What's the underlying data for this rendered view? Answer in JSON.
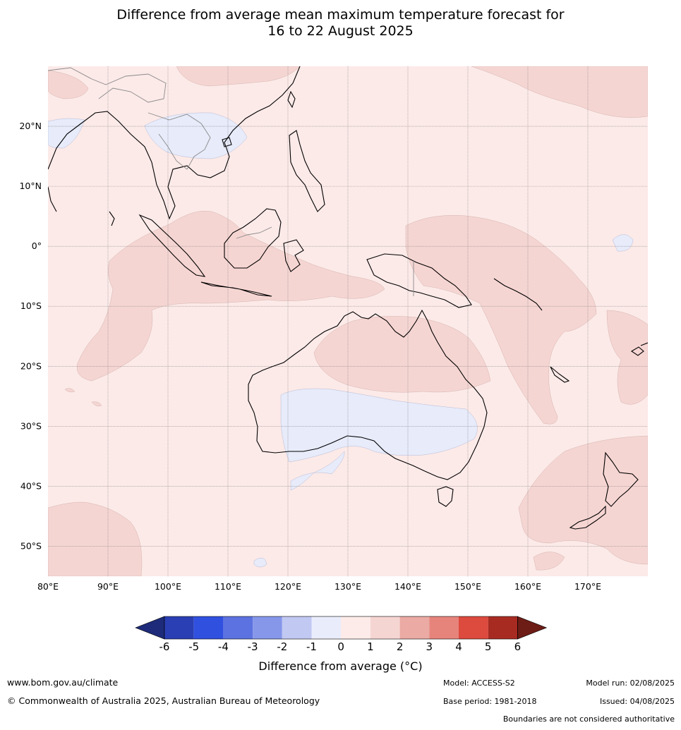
{
  "title": {
    "line1": "Difference from average mean maximum temperature forecast for",
    "line2": "16 to 22 August 2025"
  },
  "map": {
    "lon_labels": [
      "80°E",
      "90°E",
      "100°E",
      "110°E",
      "120°E",
      "130°E",
      "140°E",
      "150°E",
      "160°E",
      "170°E"
    ],
    "lat_labels": [
      "20°N",
      "10°N",
      "0°",
      "10°S",
      "20°S",
      "30°S",
      "40°S",
      "50°S"
    ],
    "extent": {
      "lon_min": 80,
      "lon_max": 180,
      "lat_min": -55,
      "lat_max": 30
    },
    "colors": {
      "band_0_1": "#fceae8",
      "band_1_2": "#f5d5d2",
      "band_m1_0": "#e7ebfa",
      "grid": "#888888",
      "coast": "#000000",
      "border": "#8a8a8a"
    }
  },
  "colorbar": {
    "title": "Difference from average (°C)",
    "ticks": [
      "-6",
      "-5",
      "-4",
      "-3",
      "-2",
      "-1",
      "0",
      "1",
      "2",
      "3",
      "4",
      "5",
      "6"
    ],
    "colors": [
      "#1e2b7a",
      "#2a3fb4",
      "#3050e0",
      "#5c72e0",
      "#8697ea",
      "#c1c8f2",
      "#e9ecfb",
      "#fcebe9",
      "#f5d5d2",
      "#ebaaa4",
      "#e6847c",
      "#dd4a3e",
      "#a82b22",
      "#6e1c16"
    ]
  },
  "footer": {
    "url": "www.bom.gov.au/climate",
    "copyright": "© Commonwealth of Australia 2025, Australian Bureau of Meteorology",
    "model": "Model: ACCESS-S2",
    "base_period": "Base period: 1981-2018",
    "model_run": "Model run: 02/08/2025",
    "issued": "Issued: 04/08/2025",
    "disclaimer": "Boundaries are not considered authoritative"
  }
}
